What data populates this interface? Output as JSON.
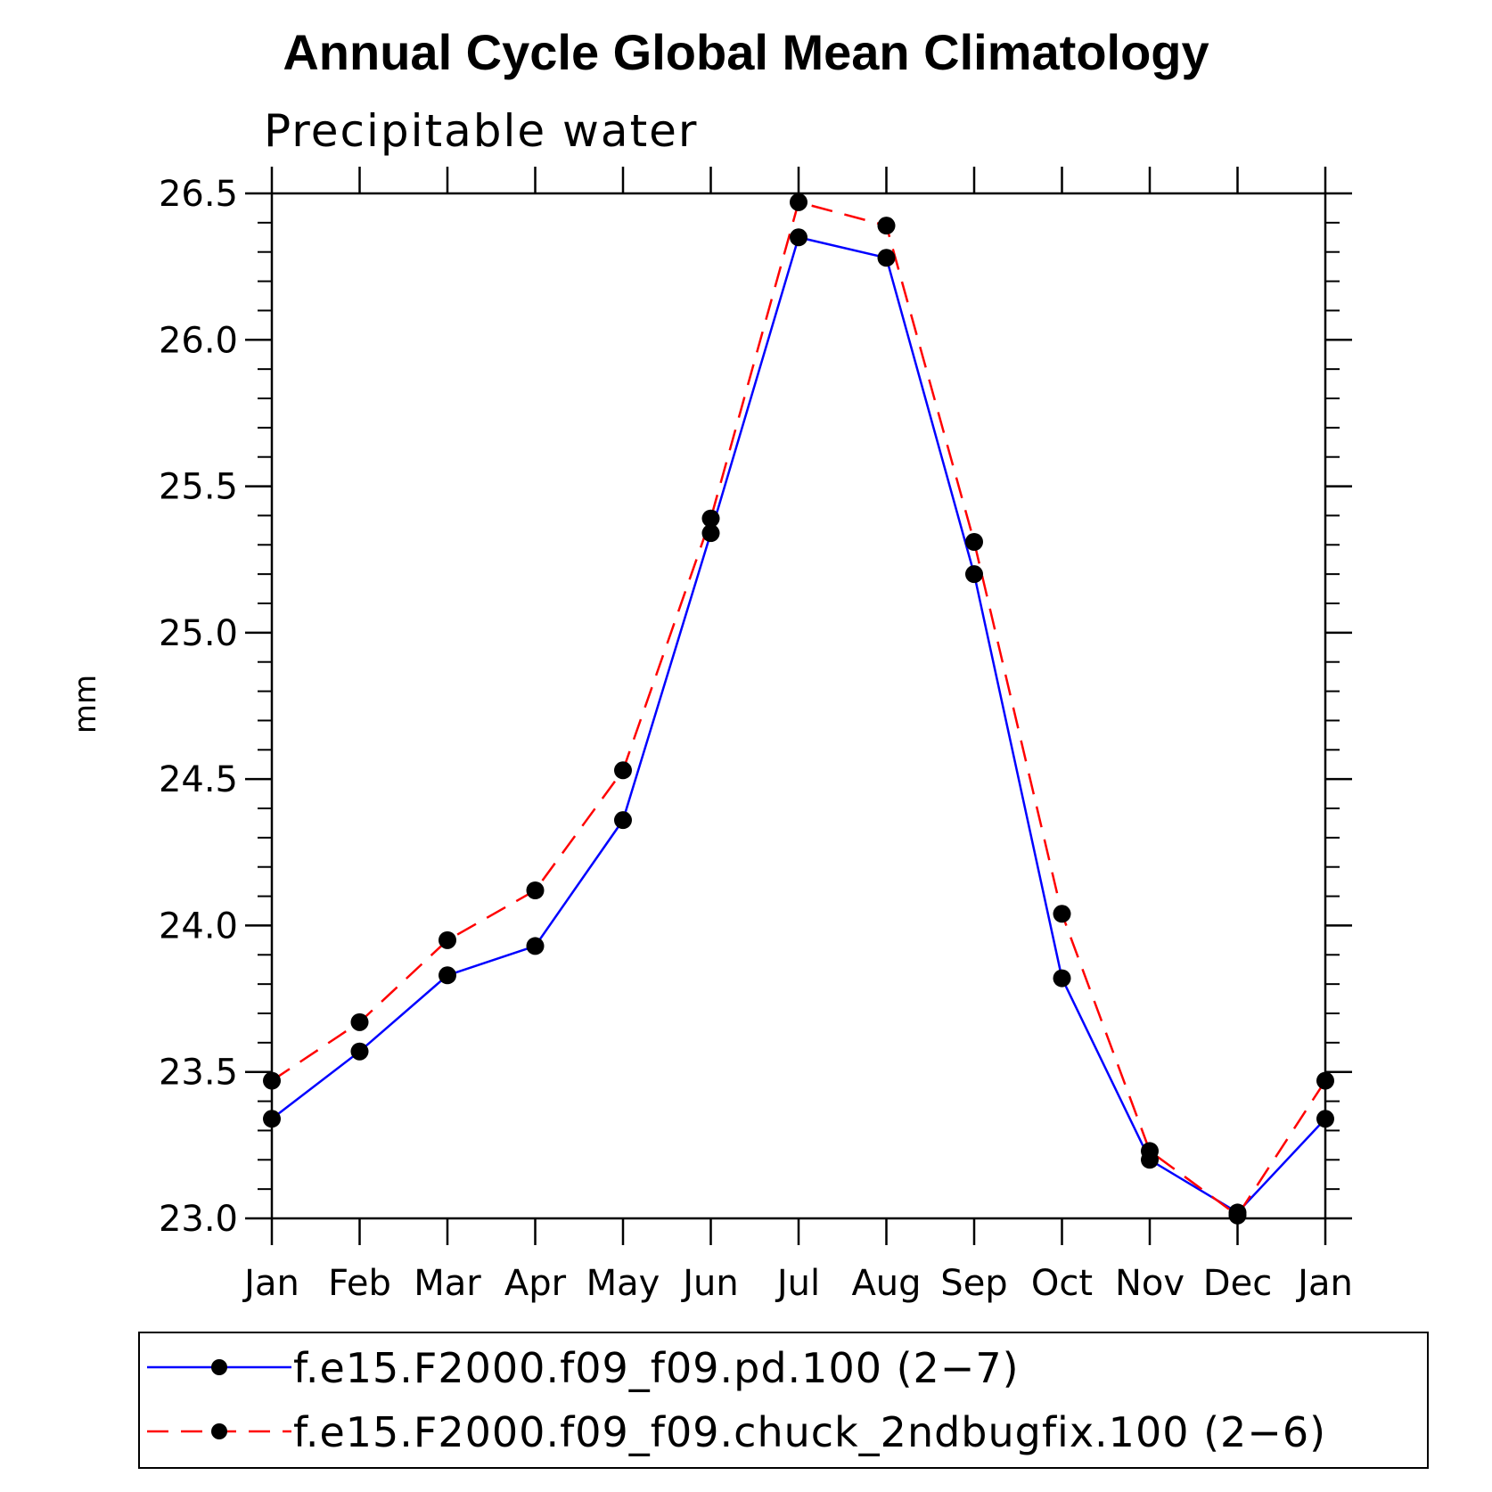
{
  "title": "Annual Cycle Global Mean Climatology",
  "subtitle": "Precipitable water",
  "colors": {
    "series1": "#0000ff",
    "series2": "#ff0000",
    "marker": "#000000"
  },
  "chart_data": {
    "type": "line",
    "title": "Annual Cycle Global Mean Climatology",
    "subtitle": "Precipitable water",
    "xlabel": "",
    "ylabel": "mm",
    "categories": [
      "Jan",
      "Feb",
      "Mar",
      "Apr",
      "May",
      "Jun",
      "Jul",
      "Aug",
      "Sep",
      "Oct",
      "Nov",
      "Dec",
      "Jan"
    ],
    "ylim": [
      23.0,
      26.5
    ],
    "yticks": [
      "23.0",
      "23.5",
      "24.0",
      "24.5",
      "25.0",
      "25.5",
      "26.0",
      "26.5"
    ],
    "legend_position": "bottom",
    "grid": false,
    "series": [
      {
        "name": "f.e15.F2000.f09_f09.pd.100 (2−7)",
        "style": "solid",
        "color": "#0000ff",
        "values": [
          23.34,
          23.57,
          23.83,
          23.93,
          24.36,
          25.34,
          26.35,
          26.28,
          25.2,
          23.82,
          23.2,
          23.02,
          23.34
        ]
      },
      {
        "name": "f.e15.F2000.f09_f09.chuck_2ndbugfix.100 (2−6)",
        "style": "dashed",
        "color": "#ff0000",
        "values": [
          23.47,
          23.67,
          23.95,
          24.12,
          24.53,
          25.39,
          26.47,
          26.39,
          25.31,
          24.04,
          23.23,
          23.01,
          23.47
        ]
      }
    ]
  }
}
